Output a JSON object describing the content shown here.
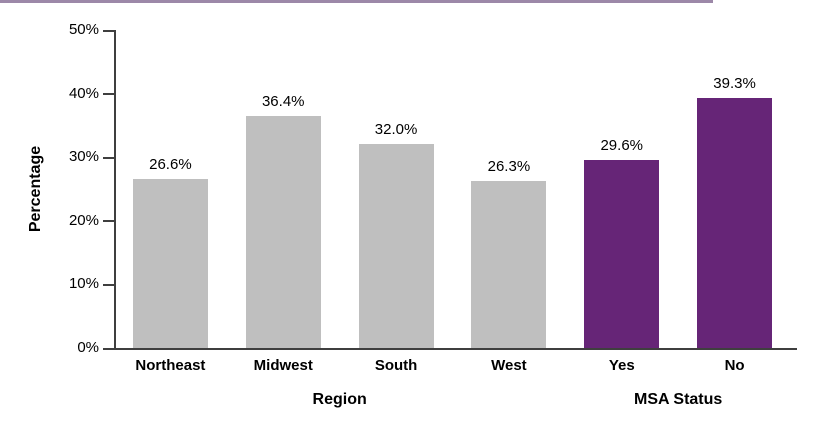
{
  "page": {
    "background": "#ffffff"
  },
  "top_rule": {
    "color": "#9c88a8"
  },
  "chart_data": {
    "type": "bar",
    "title": "",
    "ylabel": "Percentage",
    "xlabel": "",
    "ylim": [
      0,
      50
    ],
    "grid": false,
    "legend": "none",
    "yticks": [
      {
        "value": 0,
        "label": "0%"
      },
      {
        "value": 10,
        "label": "10%"
      },
      {
        "value": 20,
        "label": "20%"
      },
      {
        "value": 30,
        "label": "30%"
      },
      {
        "value": 40,
        "label": "40%"
      },
      {
        "value": 50,
        "label": "50%"
      }
    ],
    "categories": [
      "Northeast",
      "Midwest",
      "South",
      "West",
      "Yes",
      "No"
    ],
    "values": [
      26.6,
      36.4,
      32.0,
      26.3,
      29.6,
      39.3
    ],
    "data_labels": [
      "26.6%",
      "36.4%",
      "32.0%",
      "26.3%",
      "29.6%",
      "39.3%"
    ],
    "bar_colors": [
      "#bfbfbf",
      "#bfbfbf",
      "#bfbfbf",
      "#bfbfbf",
      "#662577",
      "#662577"
    ],
    "group_colors": {
      "region": "#bfbfbf",
      "msa_status": "#662577"
    },
    "axis_color": "#3f3f3f",
    "groups": [
      {
        "label": "Region",
        "span": [
          0,
          3
        ]
      },
      {
        "label": "MSA Status",
        "span": [
          4,
          5
        ]
      }
    ]
  }
}
